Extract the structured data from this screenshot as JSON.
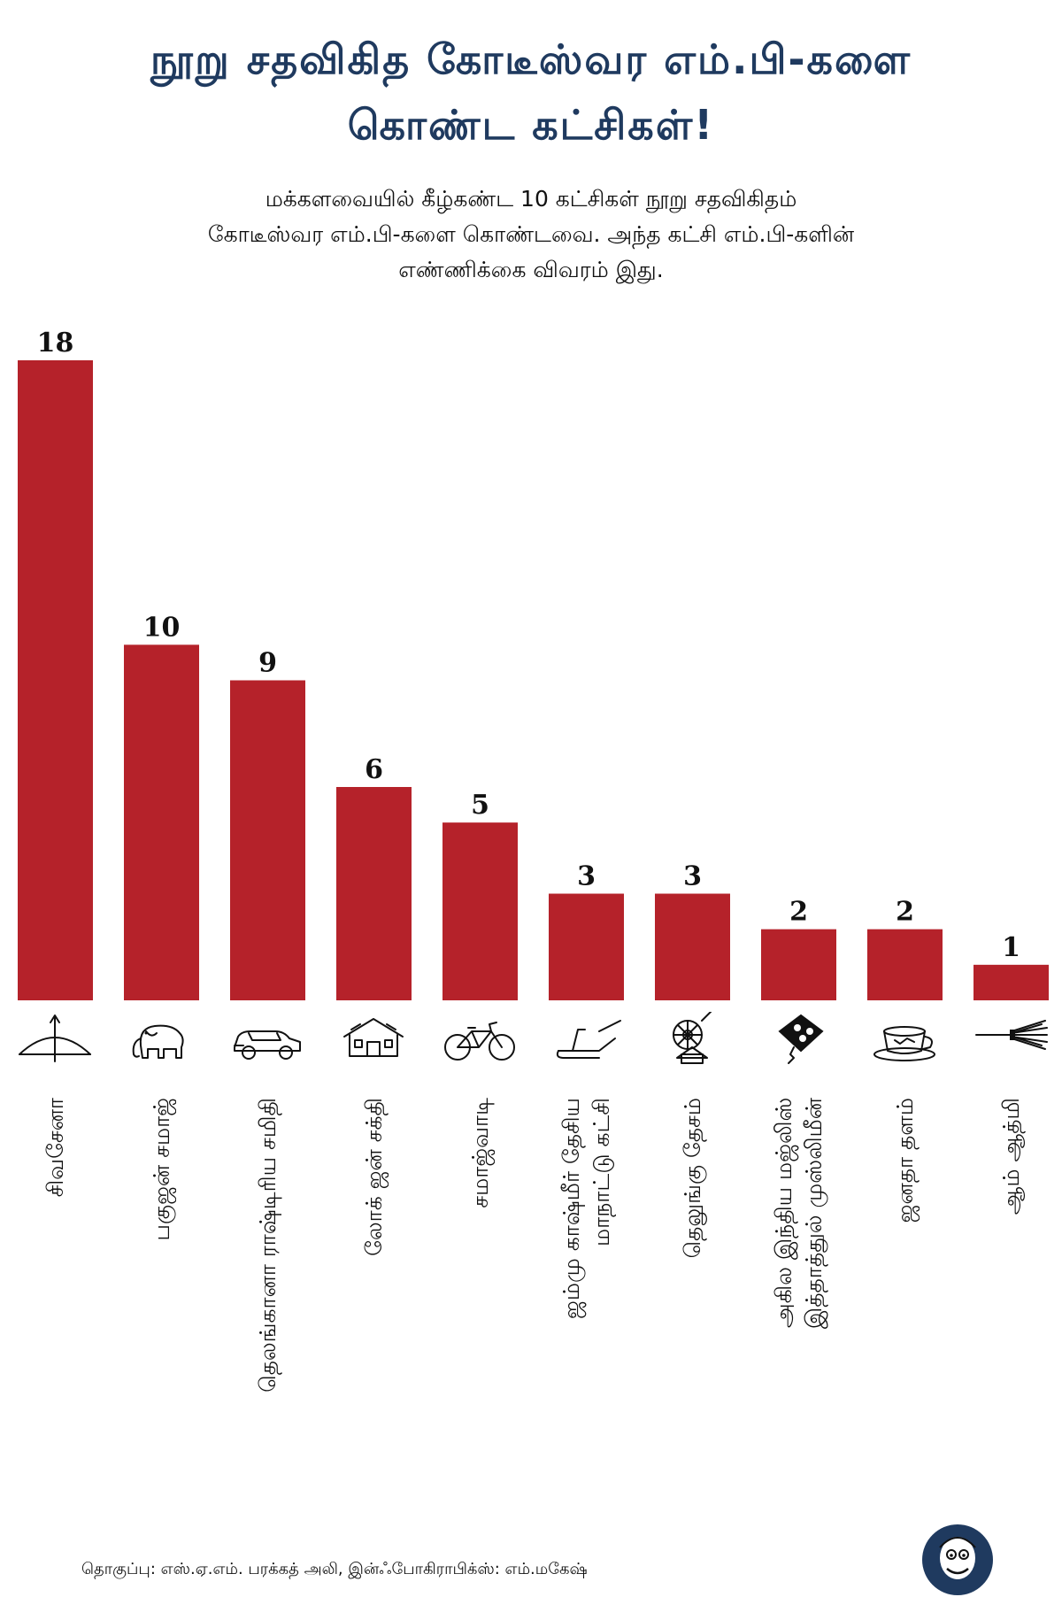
{
  "title": [
    "நூறு சதவிகித கோடீஸ்வர எம்.பி-களை",
    "கொண்ட கட்சிகள்!"
  ],
  "subtitle": [
    "மக்களவையில் கீழ்கண்ட 10 கட்சிகள் நூறு சதவிகிதம்",
    "கோடீஸ்வர எம்.பி-களை கொண்டவை. அந்த கட்சி எம்.பி-களின்",
    "எண்ணிக்கை விவரம் இது."
  ],
  "footer": "தொகுப்பு: எஸ்.ஏ.எம். பரக்கத் அலி, இன்ஃபோகிராபிக்ஸ்: எம்.மகேஷ்",
  "colors": {
    "bar": "#b5222a",
    "title": "#1f3a5f"
  },
  "chart_data": {
    "type": "bar",
    "categories": [
      "சிவசேனா",
      "பகுஜன் சமாஜ்",
      "தெலங்கானா ராஷ்டிரிய சமிதி",
      "லோக் ஜன் சக்தி",
      "சமாஜ்வாடி",
      "ஜம்மு காஷ்மீர் தேசிய\nமாநாட்டு கட்சி",
      "தெலுங்கு தேசம்",
      "அகில இந்திய மஜ்லிஸ்\nஇத்தாத்துல் முஸ்லிமீன்",
      "ஜனதா தளம்",
      "ஆம் ஆத்மி"
    ],
    "values": [
      18,
      10,
      9,
      6,
      5,
      3,
      3,
      2,
      2,
      1
    ],
    "icons": [
      "bow-and-arrow-icon",
      "elephant-icon",
      "car-icon",
      "hut-icon",
      "bicycle-icon",
      "plough-icon",
      "bicycle-house-icon",
      "kite-icon",
      "cup-and-saucer-icon",
      "broom-icon"
    ],
    "ylim": [
      0,
      18
    ]
  }
}
